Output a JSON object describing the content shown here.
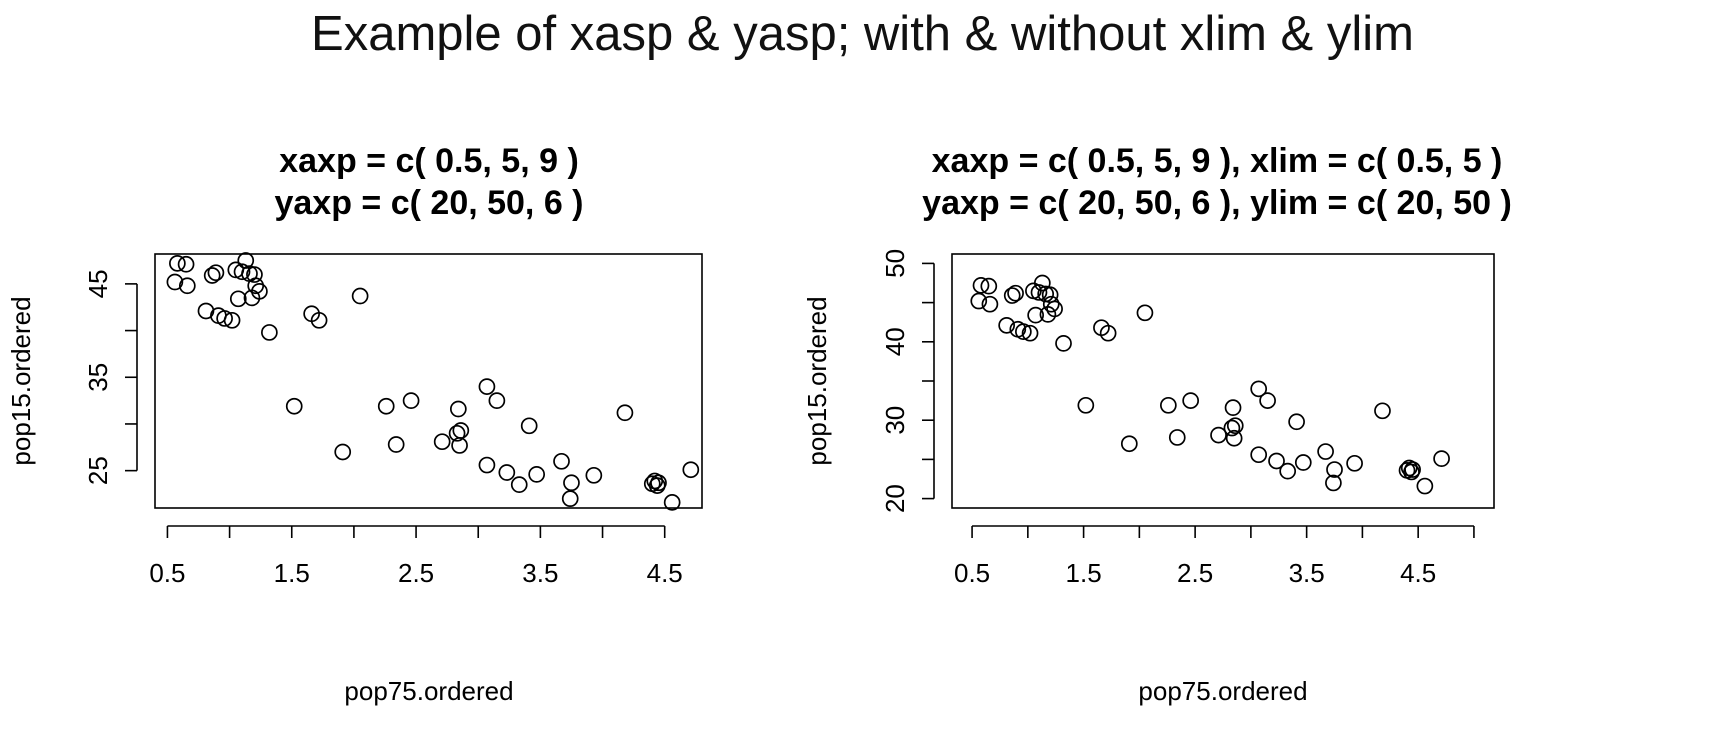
{
  "figure": {
    "title": "Example of xasp & yasp; with & without xlim & ylim"
  },
  "chart_data": [
    {
      "type": "scatter",
      "title_line1": "xaxp = c( 0.5, 5, 9 )",
      "title_line2": "yaxp = c( 20, 50, 6 )",
      "xlabel": "pop75.ordered",
      "ylabel": "pop15.ordered",
      "xlim": [
        0.4,
        4.8
      ],
      "ylim": [
        21.0,
        48.2
      ],
      "x_ticks": [
        0.5,
        1.0,
        1.5,
        2.0,
        2.5,
        3.0,
        3.5,
        4.0,
        4.5
      ],
      "x_tick_labels": [
        "0.5",
        "",
        "1.5",
        "",
        "2.5",
        "",
        "3.5",
        "",
        "4.5"
      ],
      "y_ticks": [
        25,
        30,
        35,
        40,
        45
      ],
      "y_tick_labels": [
        "25",
        "",
        "35",
        "",
        "45"
      ],
      "point_marker": "open-circle",
      "series_ref": "points"
    },
    {
      "type": "scatter",
      "title_line1": "xaxp = c( 0.5, 5, 9 ), xlim = c( 0.5, 5 )",
      "title_line2": "yaxp = c( 20, 50, 6 ), ylim = c( 20, 50 )",
      "xlabel": "pop75.ordered",
      "ylabel": "pop15.ordered",
      "xlim": [
        0.32,
        5.18
      ],
      "ylim": [
        18.8,
        51.2
      ],
      "x_ticks": [
        0.5,
        1.0,
        1.5,
        2.0,
        2.5,
        3.0,
        3.5,
        4.0,
        4.5,
        5.0
      ],
      "x_tick_labels": [
        "0.5",
        "",
        "1.5",
        "",
        "2.5",
        "",
        "3.5",
        "",
        "4.5",
        ""
      ],
      "y_ticks": [
        20,
        25,
        30,
        35,
        40,
        45,
        50
      ],
      "y_tick_labels": [
        "20",
        "",
        "30",
        "",
        "40",
        "",
        "50"
      ],
      "point_marker": "open-circle",
      "series_ref": "points"
    }
  ],
  "points": [
    [
      0.56,
      45.2
    ],
    [
      0.58,
      47.2
    ],
    [
      0.65,
      47.1
    ],
    [
      0.66,
      44.8
    ],
    [
      0.81,
      42.1
    ],
    [
      0.86,
      45.9
    ],
    [
      0.89,
      46.2
    ],
    [
      0.91,
      41.6
    ],
    [
      0.96,
      41.3
    ],
    [
      1.02,
      41.1
    ],
    [
      1.05,
      46.5
    ],
    [
      1.07,
      43.4
    ],
    [
      1.1,
      46.3
    ],
    [
      1.13,
      47.5
    ],
    [
      1.16,
      46.1
    ],
    [
      1.18,
      43.5
    ],
    [
      1.2,
      46.0
    ],
    [
      1.21,
      44.8
    ],
    [
      1.24,
      44.2
    ],
    [
      1.32,
      39.8
    ],
    [
      1.52,
      31.9
    ],
    [
      1.66,
      41.8
    ],
    [
      1.72,
      41.1
    ],
    [
      1.91,
      27.0
    ],
    [
      2.05,
      43.7
    ],
    [
      2.26,
      31.9
    ],
    [
      2.34,
      27.8
    ],
    [
      2.46,
      32.5
    ],
    [
      2.71,
      28.1
    ],
    [
      2.83,
      29.0
    ],
    [
      2.84,
      31.6
    ],
    [
      2.85,
      27.7
    ],
    [
      2.86,
      29.3
    ],
    [
      3.07,
      25.6
    ],
    [
      3.07,
      34.0
    ],
    [
      3.15,
      32.5
    ],
    [
      3.23,
      24.8
    ],
    [
      3.33,
      23.5
    ],
    [
      3.41,
      29.8
    ],
    [
      3.47,
      24.6
    ],
    [
      3.67,
      26.0
    ],
    [
      3.74,
      22.0
    ],
    [
      3.75,
      23.7
    ],
    [
      3.93,
      24.5
    ],
    [
      4.18,
      31.2
    ],
    [
      4.4,
      23.6
    ],
    [
      4.42,
      23.9
    ],
    [
      4.44,
      23.4
    ],
    [
      4.45,
      23.7
    ],
    [
      4.56,
      21.6
    ],
    [
      4.71,
      25.1
    ]
  ]
}
